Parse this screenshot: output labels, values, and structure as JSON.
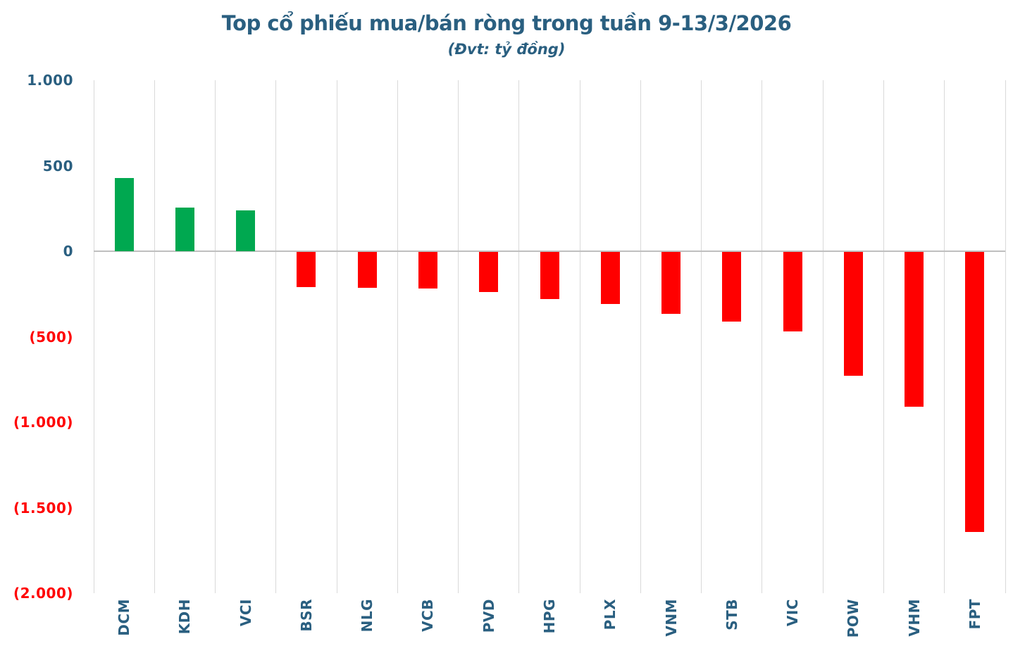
{
  "header": {
    "title": "Top cổ phiếu mua/bán ròng trong tuần 9-13/3/2026",
    "subtitle": "(Đvt: tỷ đồng)"
  },
  "colors": {
    "title_blue": "#2A5F80",
    "positive_green": "#00A850",
    "negative_red": "#FF0000",
    "gridline_gray": "#D9D9D9",
    "zero_axis_gray": "#BFBFBF"
  },
  "chart_data": {
    "type": "bar",
    "title": "Top cổ phiếu mua/bán ròng trong tuần 9-13/3/2026",
    "subtitle": "(Đvt: tỷ đồng)",
    "unit": "tỷ đồng",
    "categories": [
      "DCM",
      "KDH",
      "VCI",
      "BSR",
      "NLG",
      "VCB",
      "PVD",
      "HPG",
      "PLX",
      "VNM",
      "STB",
      "VIC",
      "POW",
      "VHM",
      "FPT"
    ],
    "values": [
      430,
      255,
      240,
      -210,
      -215,
      -220,
      -240,
      -280,
      -310,
      -365,
      -410,
      -470,
      -730,
      -910,
      -1640
    ],
    "ylim": [
      -2000,
      1000
    ],
    "ytick_interval": 500,
    "yticks": [
      {
        "value": 1000,
        "label": "1.000"
      },
      {
        "value": 500,
        "label": "500"
      },
      {
        "value": 0,
        "label": "0"
      },
      {
        "value": -500,
        "label": "(500)"
      },
      {
        "value": -1000,
        "label": "(1.000)"
      },
      {
        "value": -1500,
        "label": "(1.500)"
      },
      {
        "value": -2000,
        "label": "(2.000)"
      }
    ],
    "grid": "vertical-category-separators-only",
    "legend": "none",
    "bar_colors": {
      "positive": "#00A850",
      "negative": "#FF0000"
    },
    "x_label_rotation": 90
  }
}
